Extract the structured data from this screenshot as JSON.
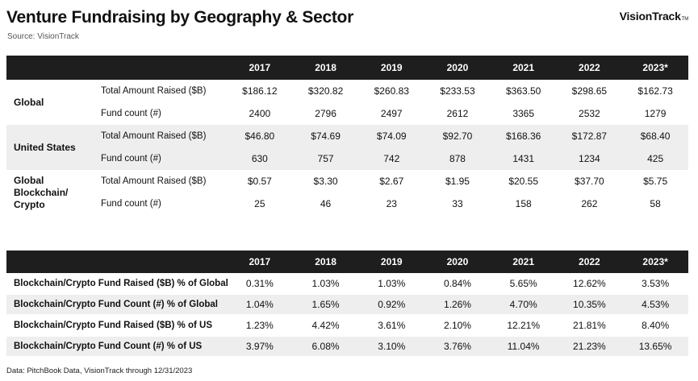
{
  "header": {
    "title": "Venture Fundraising by Geography & Sector",
    "source": "Source: VisionTrack",
    "logo_text": "VisionTrack",
    "logo_tm": "TM"
  },
  "table1": {
    "years": [
      "2017",
      "2018",
      "2019",
      "2020",
      "2021",
      "2022",
      "2023*"
    ],
    "groups": [
      {
        "name": "Global",
        "rows": [
          {
            "metric": "Total Amount Raised ($B)",
            "values": [
              "$186.12",
              "$320.82",
              "$260.83",
              "$233.53",
              "$363.50",
              "$298.65",
              "$162.73"
            ]
          },
          {
            "metric": "Fund count (#)",
            "values": [
              "2400",
              "2796",
              "2497",
              "2612",
              "3365",
              "2532",
              "1279"
            ]
          }
        ]
      },
      {
        "name": "United States",
        "rows": [
          {
            "metric": "Total Amount Raised ($B)",
            "values": [
              "$46.80",
              "$74.69",
              "$74.09",
              "$92.70",
              "$168.36",
              "$172.87",
              "$68.40"
            ]
          },
          {
            "metric": "Fund count (#)",
            "values": [
              "630",
              "757",
              "742",
              "878",
              "1431",
              "1234",
              "425"
            ]
          }
        ]
      },
      {
        "name": "Global Blockchain/ Crypto",
        "rows": [
          {
            "metric": "Total Amount Raised ($B)",
            "values": [
              "$0.57",
              "$3.30",
              "$2.67",
              "$1.95",
              "$20.55",
              "$37.70",
              "$5.75"
            ]
          },
          {
            "metric": "Fund count (#)",
            "values": [
              "25",
              "46",
              "23",
              "33",
              "158",
              "262",
              "58"
            ]
          }
        ]
      }
    ]
  },
  "table2": {
    "years": [
      "2017",
      "2018",
      "2019",
      "2020",
      "2021",
      "2022",
      "2023*"
    ],
    "rows": [
      {
        "metric": "Blockchain/Crypto Fund Raised ($B) % of Global",
        "values": [
          "0.31%",
          "1.03%",
          "1.03%",
          "0.84%",
          "5.65%",
          "12.62%",
          "3.53%"
        ]
      },
      {
        "metric": "Blockchain/Crypto Fund Count (#) % of Global",
        "values": [
          "1.04%",
          "1.65%",
          "0.92%",
          "1.26%",
          "4.70%",
          "10.35%",
          "4.53%"
        ]
      },
      {
        "metric": "Blockchain/Crypto Fund Raised ($B) % of US",
        "values": [
          "1.23%",
          "4.42%",
          "3.61%",
          "2.10%",
          "12.21%",
          "21.81%",
          "8.40%"
        ]
      },
      {
        "metric": "Blockchain/Crypto Fund Count (#) % of US",
        "values": [
          "3.97%",
          "6.08%",
          "3.10%",
          "3.76%",
          "11.04%",
          "21.23%",
          "13.65%"
        ]
      }
    ]
  },
  "footnote": "Data: PitchBook Data, VisionTrack through 12/31/2023"
}
